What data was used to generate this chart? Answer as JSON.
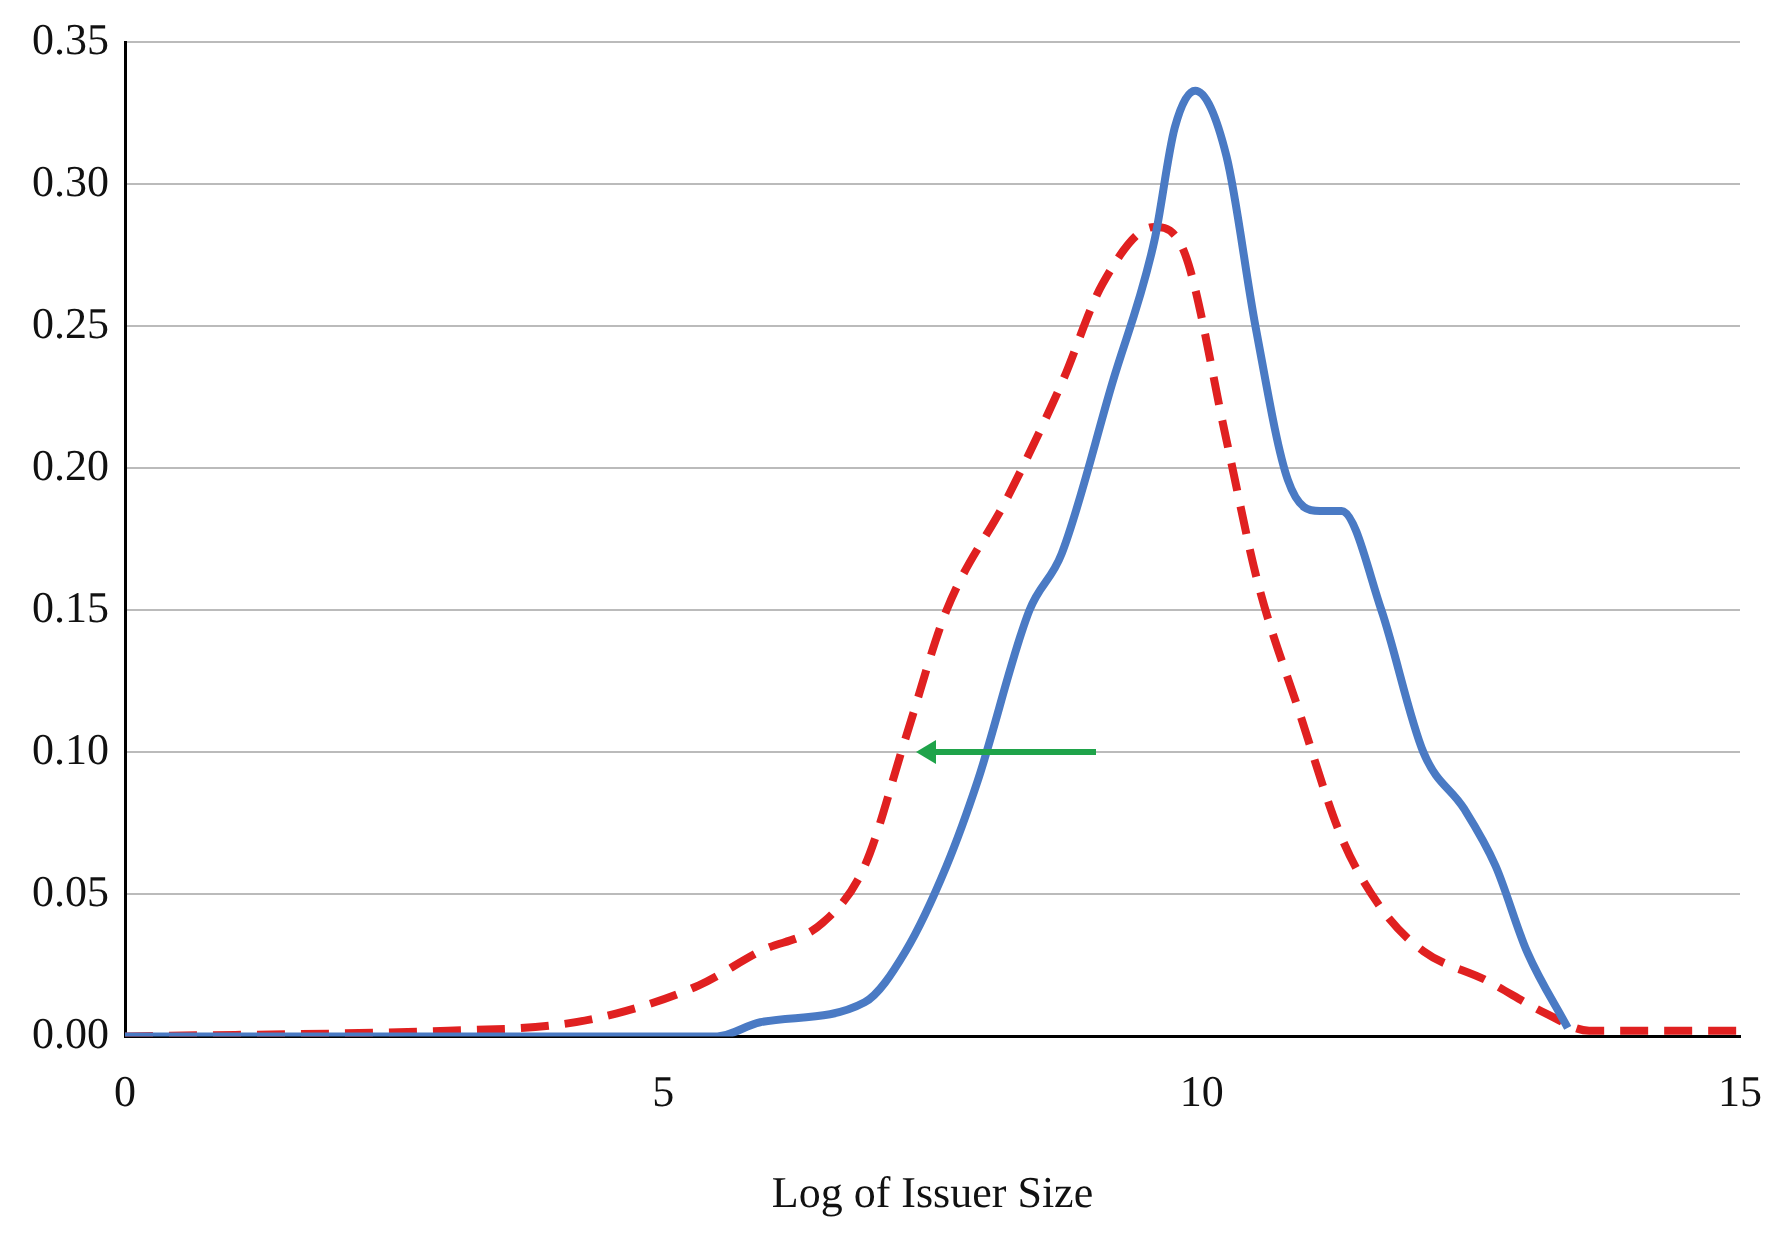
{
  "chart_data": {
    "type": "line",
    "xlabel": "Log of Issuer Size",
    "xlim": [
      0,
      15
    ],
    "xticks": [
      0,
      5,
      10,
      15
    ],
    "ylim": [
      0,
      0.35
    ],
    "yticks": [
      {
        "value": 0,
        "label": "0.00"
      },
      {
        "value": 0.05,
        "label": "0.05"
      },
      {
        "value": 0.1,
        "label": "0.10"
      },
      {
        "value": 0.15,
        "label": "0.15"
      },
      {
        "value": 0.2,
        "label": "0.20"
      },
      {
        "value": 0.25,
        "label": "0.25"
      },
      {
        "value": 0.3,
        "label": "0.30"
      },
      {
        "value": 0.35,
        "label": "0.35"
      }
    ],
    "grid": "y",
    "legend": false,
    "marker": "none",
    "series": [
      {
        "color": "#4a7ac4",
        "line_style": "solid",
        "x": [
          0,
          3,
          5.5,
          5.9,
          6.87,
          7.25,
          7.63,
          7.92,
          8.4,
          8.7,
          9.17,
          9.56,
          9.75,
          9.94,
          10.23,
          10.5,
          10.8,
          11.1,
          11.3,
          11.67,
          12.06,
          12.44,
          12.73,
          13.02,
          13.4
        ],
        "values": [
          0,
          0,
          0,
          0.005,
          0.012,
          0.03,
          0.06,
          0.09,
          0.15,
          0.17,
          0.23,
          0.28,
          0.32,
          0.333,
          0.31,
          0.25,
          0.196,
          0.185,
          0.185,
          0.15,
          0.1,
          0.08,
          0.06,
          0.03,
          0.003
        ]
      },
      {
        "color": "#e02020",
        "line_style": "dashed",
        "x": [
          0,
          3,
          4,
          4.56,
          5.33,
          5.9,
          6.48,
          6.87,
          7.25,
          7.63,
          8.2,
          8.7,
          9.08,
          9.56,
          9.85,
          10.23,
          10.52,
          10.9,
          11.3,
          11.67,
          12.06,
          12.63,
          13.2,
          13.6,
          14.2,
          15
        ],
        "values": [
          0,
          0.002,
          0.004,
          0.008,
          0.018,
          0.03,
          0.04,
          0.06,
          0.105,
          0.15,
          0.19,
          0.23,
          0.265,
          0.285,
          0.275,
          0.21,
          0.16,
          0.115,
          0.07,
          0.045,
          0.03,
          0.02,
          0.008,
          0.002,
          0.002,
          0.002
        ]
      }
    ]
  }
}
